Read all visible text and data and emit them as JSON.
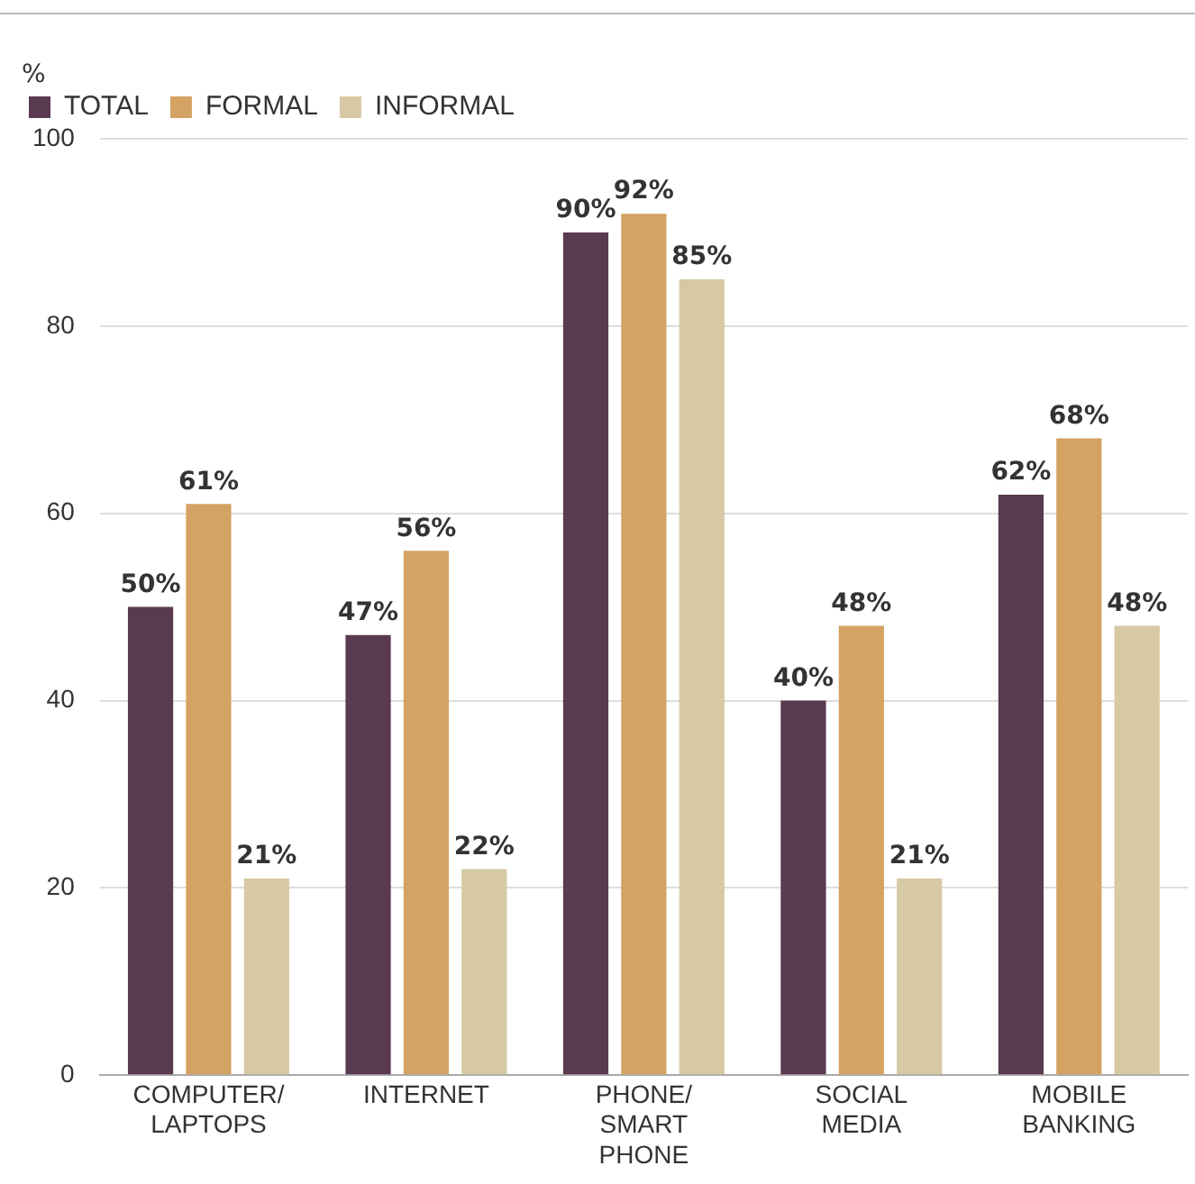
{
  "chart_data": {
    "type": "bar",
    "ylabel": "%",
    "categories": [
      "COMPUTER/ LAPTOPS",
      "INTERNET",
      "PHONE/ SMART PHONE",
      "SOCIAL MEDIA",
      "MOBILE BANKING"
    ],
    "series": [
      {
        "name": "TOTAL",
        "color": "#5a3a50",
        "values": [
          50,
          47,
          90,
          40,
          62
        ],
        "value_labels": [
          "50%",
          "47%",
          "90%",
          "40%",
          "62%"
        ]
      },
      {
        "name": "FORMAL",
        "color": "#d4a263",
        "values": [
          61,
          56,
          92,
          48,
          68
        ],
        "value_labels": [
          "61%",
          "56%",
          "92%",
          "48%",
          "68%"
        ]
      },
      {
        "name": "INFORMAL",
        "color": "#d6c9a3",
        "values": [
          21,
          22,
          85,
          21,
          48
        ],
        "value_labels": [
          "21%",
          "22%",
          "85%",
          "21%",
          "48%"
        ]
      }
    ],
    "ylim": [
      0,
      100
    ],
    "yticks": [
      0,
      20,
      40,
      60,
      80,
      100
    ],
    "grid": "y",
    "legend": "top left"
  }
}
